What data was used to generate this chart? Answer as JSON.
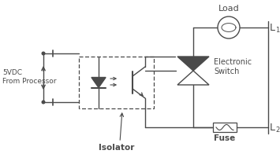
{
  "bg_color": "#ffffff",
  "line_color": "#4a4a4a",
  "labels": {
    "load": "Load",
    "electronic_switch": "Electronic\nSwitch",
    "isolator": "Isolator",
    "fuse": "Fuse",
    "vdc": "5VDC\nFrom Processor",
    "L1": "L",
    "L1_sub": "1",
    "L2": "L",
    "L2_sub": "2"
  },
  "figsize": [
    3.55,
    1.96
  ],
  "dpi": 100
}
